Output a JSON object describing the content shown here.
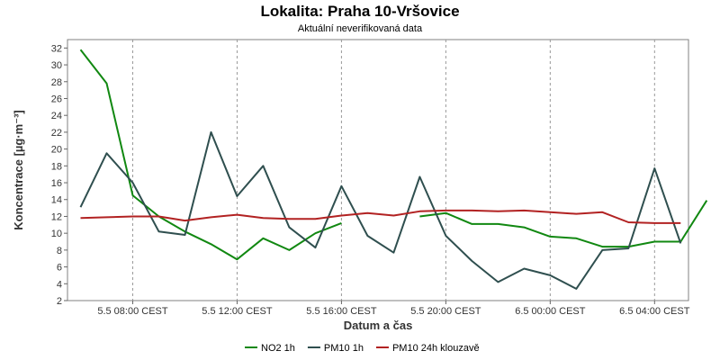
{
  "chart_data": {
    "type": "line",
    "title": "Lokalita: Praha 10-Vršovice",
    "subtitle": "Aktuální neverifikovaná data",
    "xlabel": "Datum a čas",
    "ylabel": "Koncentrace [µg·m⁻³]",
    "ylim": [
      2,
      33
    ],
    "xlim_hours": [
      5.5,
      29.3
    ],
    "y_ticks": [
      2,
      4,
      6,
      8,
      10,
      12,
      14,
      16,
      18,
      20,
      22,
      24,
      26,
      28,
      30,
      32
    ],
    "x_ticks": [
      {
        "value": 8,
        "label": "5.5 08:00 CEST"
      },
      {
        "value": 12,
        "label": "5.5 12:00 CEST"
      },
      {
        "value": 16,
        "label": "5.5 16:00 CEST"
      },
      {
        "value": 20,
        "label": "5.5 20:00 CEST"
      },
      {
        "value": 24,
        "label": "6.5 00:00 CEST"
      },
      {
        "value": 28,
        "label": "6.5 04:00 CEST"
      }
    ],
    "grid": true,
    "legend_position": "bottom",
    "series": [
      {
        "name": "NO2 1h",
        "color": "#118811",
        "points": [
          [
            6,
            31.8
          ],
          [
            7,
            27.8
          ],
          [
            8,
            14.5
          ],
          [
            9,
            12.0
          ],
          [
            10,
            10.2
          ],
          [
            11,
            8.7
          ],
          [
            12,
            6.9
          ],
          [
            13,
            9.4
          ],
          [
            14,
            8.0
          ],
          [
            15,
            10.0
          ],
          [
            16,
            11.2
          ],
          null,
          [
            19,
            12.0
          ],
          [
            20,
            12.4
          ],
          [
            21,
            11.1
          ],
          [
            22,
            11.1
          ],
          [
            23,
            10.7
          ],
          [
            24,
            9.6
          ],
          [
            25,
            9.4
          ],
          [
            26,
            8.4
          ],
          [
            27,
            8.4
          ],
          [
            28,
            9.0
          ],
          [
            29,
            9.0
          ],
          [
            30,
            13.9
          ]
        ]
      },
      {
        "name": "PM10 1h",
        "color": "#2f4f4f",
        "points": [
          [
            6,
            13.1
          ],
          [
            7,
            19.5
          ],
          [
            8,
            16.0
          ],
          [
            9,
            10.2
          ],
          [
            10,
            9.8
          ],
          [
            11,
            22.0
          ],
          [
            12,
            14.4
          ],
          [
            13,
            18.0
          ],
          [
            14,
            10.7
          ],
          [
            15,
            8.3
          ],
          [
            16,
            15.6
          ],
          [
            17,
            9.7
          ],
          [
            18,
            7.7
          ],
          [
            19,
            16.7
          ],
          [
            20,
            9.7
          ],
          [
            21,
            6.7
          ],
          [
            22,
            4.2
          ],
          [
            23,
            5.8
          ],
          [
            24,
            5.0
          ],
          [
            25,
            3.4
          ],
          [
            26,
            8.0
          ],
          [
            27,
            8.2
          ],
          [
            28,
            17.7
          ],
          [
            29,
            8.8
          ]
        ]
      },
      {
        "name": "PM10 24h klouzavě",
        "color": "#b22222",
        "points": [
          [
            6,
            11.8
          ],
          [
            7,
            11.9
          ],
          [
            8,
            12.0
          ],
          [
            9,
            12.0
          ],
          [
            10,
            11.5
          ],
          [
            11,
            11.9
          ],
          [
            12,
            12.2
          ],
          [
            13,
            11.8
          ],
          [
            14,
            11.7
          ],
          [
            15,
            11.7
          ],
          [
            16,
            12.1
          ],
          [
            17,
            12.4
          ],
          [
            18,
            12.1
          ],
          [
            19,
            12.6
          ],
          [
            20,
            12.7
          ],
          [
            21,
            12.7
          ],
          [
            22,
            12.6
          ],
          [
            23,
            12.7
          ],
          [
            24,
            12.5
          ],
          [
            25,
            12.3
          ],
          [
            26,
            12.5
          ],
          [
            27,
            11.3
          ],
          [
            28,
            11.2
          ],
          [
            29,
            11.2
          ]
        ]
      }
    ]
  }
}
